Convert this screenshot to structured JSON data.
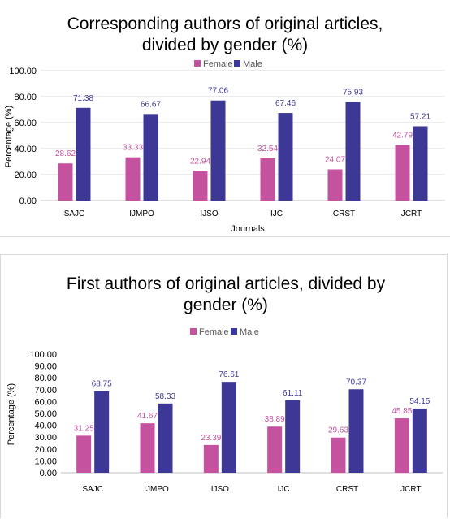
{
  "chart_data": [
    {
      "type": "bar",
      "title": "Corresponding authors of original articles,",
      "title2": "divided by gender (%)",
      "xlabel": "Journals",
      "ylabel": "Percentage (%)",
      "ylim": [
        0,
        100
      ],
      "ticks": [
        "0.00",
        "20.00",
        "40.00",
        "60.00",
        "80.00",
        "100.00"
      ],
      "categories": [
        "SAJC",
        "IJMPO",
        "IJSO",
        "IJC",
        "CRST",
        "JCRT"
      ],
      "legend_position": "top",
      "grid": true,
      "series": [
        {
          "name": "Female",
          "color": "#c5529f",
          "values": [
            28.62,
            33.33,
            22.94,
            32.54,
            24.07,
            42.79
          ],
          "labels": [
            "28.62",
            "33.33",
            "22.94",
            "32.54",
            "24.07",
            "42.79"
          ]
        },
        {
          "name": "Male",
          "color": "#3d3896",
          "values": [
            71.38,
            66.67,
            77.06,
            67.46,
            75.93,
            57.21
          ],
          "labels": [
            "71.38",
            "66.67",
            "77.06",
            "67.46",
            "75.93",
            "57.21"
          ]
        }
      ]
    },
    {
      "type": "bar",
      "title": "First authors of original articles, divided by",
      "title2": "gender (%)",
      "xlabel": "",
      "ylabel": "Percentage (%)",
      "ylim": [
        0,
        100
      ],
      "ticks": [
        "0.00",
        "10.00",
        "20.00",
        "30.00",
        "40.00",
        "50.00",
        "60.00",
        "70.00",
        "80.00",
        "90.00",
        "100.00"
      ],
      "categories": [
        "SAJC",
        "IJMPO",
        "IJSO",
        "IJC",
        "CRST",
        "JCRT"
      ],
      "legend_position": "top",
      "grid": false,
      "series": [
        {
          "name": "Female",
          "color": "#c5529f",
          "values": [
            31.25,
            41.67,
            23.39,
            38.89,
            29.63,
            45.85
          ],
          "labels": [
            "31.25",
            "41.67",
            "23.39",
            "38.89",
            "29.63",
            "45.85"
          ]
        },
        {
          "name": "Male",
          "color": "#3d3896",
          "values": [
            68.75,
            58.33,
            76.61,
            61.11,
            70.37,
            54.15
          ],
          "labels": [
            "68.75",
            "58.33",
            "76.61",
            "61.11",
            "70.37",
            "54.15"
          ]
        }
      ]
    }
  ]
}
